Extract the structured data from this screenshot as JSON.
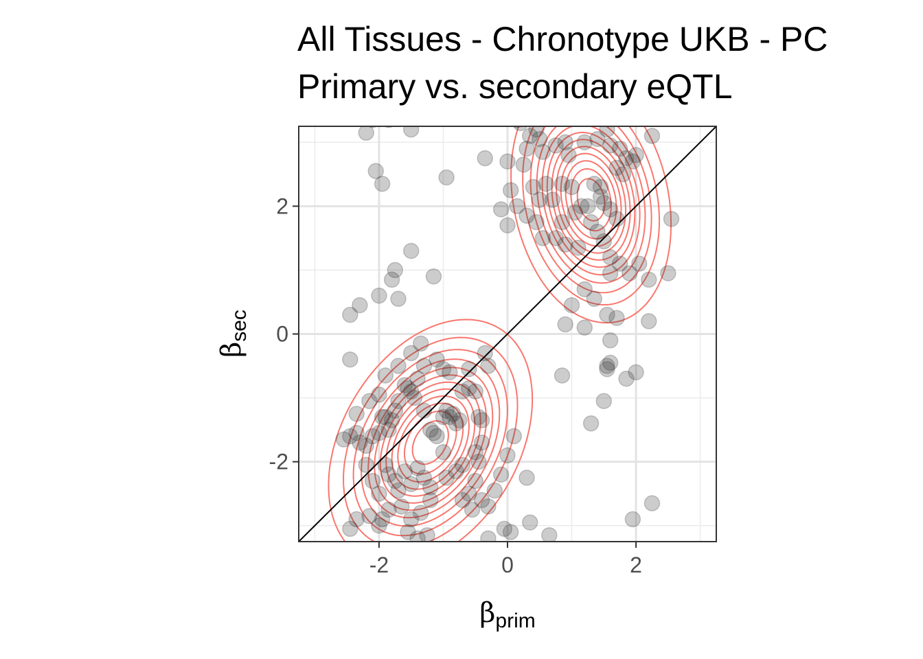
{
  "chart_data": {
    "type": "scatter",
    "title": "All Tissues - Chronotype UKB - PC",
    "subtitle": "Primary vs. secondary eQTL",
    "xlabel": {
      "symbol": "β",
      "subscript": "prim"
    },
    "ylabel": {
      "symbol": "β",
      "subscript": "sec"
    },
    "xlim": [
      -3.25,
      3.25
    ],
    "ylim": [
      -3.25,
      3.25
    ],
    "x_ticks": [
      -2,
      0,
      2
    ],
    "y_ticks": [
      -2,
      0,
      2
    ],
    "x_tick_labels": [
      "-2",
      "0",
      "2"
    ],
    "y_tick_labels": [
      "-2",
      "0",
      "2"
    ],
    "minor_gridlines": [
      -3,
      -1,
      1,
      3
    ],
    "grid": true,
    "reference_line": {
      "type": "identity",
      "slope": 1,
      "intercept": 0,
      "color": "#000000"
    },
    "point_color": "#333333",
    "point_opacity": 0.25,
    "contour_color": "#f8766d",
    "density_contours": {
      "note_free": true,
      "modes": [
        {
          "x": -1.2,
          "y": -1.7,
          "sx": 0.7,
          "sy": 0.85,
          "rho": 0.35,
          "weight": 0.55
        },
        {
          "x": 1.3,
          "y": 2.1,
          "sx": 0.55,
          "sy": 0.85,
          "rho": -0.2,
          "weight": 0.45
        }
      ],
      "levels": 12
    },
    "points": [
      [
        -2.55,
        -1.65
      ],
      [
        -2.45,
        -1.6
      ],
      [
        -2.35,
        -1.55
      ],
      [
        -2.3,
        -1.7
      ],
      [
        -2.2,
        -1.75
      ],
      [
        -2.1,
        -1.6
      ],
      [
        -2.0,
        -1.55
      ],
      [
        -1.95,
        -1.3
      ],
      [
        -1.9,
        -1.3
      ],
      [
        -1.85,
        -1.5
      ],
      [
        -1.8,
        -1.35
      ],
      [
        -1.75,
        -1.2
      ],
      [
        -1.7,
        -1.05
      ],
      [
        -1.6,
        -0.8
      ],
      [
        -1.55,
        -0.85
      ],
      [
        -1.5,
        -0.9
      ],
      [
        -1.45,
        -1.0
      ],
      [
        -1.4,
        -0.7
      ],
      [
        -1.3,
        -1.2
      ],
      [
        -1.2,
        -1.5
      ],
      [
        -1.15,
        -1.55
      ],
      [
        -1.1,
        -1.6
      ],
      [
        -1.0,
        -1.3
      ],
      [
        -0.95,
        -1.2
      ],
      [
        -0.9,
        -1.3
      ],
      [
        -0.85,
        -1.25
      ],
      [
        -0.8,
        -1.4
      ],
      [
        -0.75,
        -1.35
      ],
      [
        -0.7,
        -0.9
      ],
      [
        -0.6,
        -0.85
      ],
      [
        -0.5,
        -0.9
      ],
      [
        -0.45,
        -1.3
      ],
      [
        -0.4,
        -1.35
      ],
      [
        -0.3,
        -0.5
      ],
      [
        -0.35,
        -0.3
      ],
      [
        -0.6,
        -0.55
      ],
      [
        -0.9,
        -0.6
      ],
      [
        -1.0,
        -0.55
      ],
      [
        -1.1,
        -0.4
      ],
      [
        -1.3,
        -0.5
      ],
      [
        -1.35,
        -0.15
      ],
      [
        -1.5,
        -0.3
      ],
      [
        -1.7,
        -0.5
      ],
      [
        -1.9,
        -0.65
      ],
      [
        -2.0,
        -0.95
      ],
      [
        -2.15,
        -1.05
      ],
      [
        -2.35,
        -1.25
      ],
      [
        -2.45,
        -0.4
      ],
      [
        -2.45,
        0.3
      ],
      [
        -2.3,
        0.45
      ],
      [
        -2.0,
        0.6
      ],
      [
        -1.7,
        0.55
      ],
      [
        -1.8,
        0.85
      ],
      [
        -1.75,
        1.0
      ],
      [
        -1.5,
        1.3
      ],
      [
        -1.15,
        0.9
      ],
      [
        -2.2,
        -2.05
      ],
      [
        -2.1,
        -2.3
      ],
      [
        -2.0,
        -2.5
      ],
      [
        -1.9,
        -2.05
      ],
      [
        -1.85,
        -2.2
      ],
      [
        -1.75,
        -2.3
      ],
      [
        -1.7,
        -2.45
      ],
      [
        -1.6,
        -2.15
      ],
      [
        -1.5,
        -2.35
      ],
      [
        -1.4,
        -2.1
      ],
      [
        -1.3,
        -2.25
      ],
      [
        -1.2,
        -2.4
      ],
      [
        -1.0,
        -1.85
      ],
      [
        -0.95,
        -2.25
      ],
      [
        -0.8,
        -2.15
      ],
      [
        -0.7,
        -2.05
      ],
      [
        -0.5,
        -1.85
      ],
      [
        -0.4,
        -1.7
      ],
      [
        -0.45,
        -2.0
      ],
      [
        -0.5,
        -2.3
      ],
      [
        -0.6,
        -2.5
      ],
      [
        -0.7,
        -2.6
      ],
      [
        -0.55,
        -2.75
      ],
      [
        -0.4,
        -2.6
      ],
      [
        -0.3,
        -2.7
      ],
      [
        -0.2,
        -2.45
      ],
      [
        -0.1,
        -2.2
      ],
      [
        0.0,
        -1.9
      ],
      [
        0.1,
        -1.6
      ],
      [
        0.3,
        -2.25
      ],
      [
        -1.2,
        -2.6
      ],
      [
        -1.35,
        -2.8
      ],
      [
        -1.5,
        -2.9
      ],
      [
        -1.65,
        -2.7
      ],
      [
        -1.85,
        -2.75
      ],
      [
        -1.95,
        -2.9
      ],
      [
        -2.0,
        -3.0
      ],
      [
        -2.15,
        -2.85
      ],
      [
        -2.35,
        -2.9
      ],
      [
        -2.45,
        -3.05
      ],
      [
        -1.55,
        -3.1
      ],
      [
        -1.4,
        -3.2
      ],
      [
        -1.25,
        -3.15
      ],
      [
        -0.3,
        -3.2
      ],
      [
        -0.05,
        -3.05
      ],
      [
        0.05,
        -3.1
      ],
      [
        0.35,
        -2.95
      ],
      [
        0.65,
        -3.15
      ],
      [
        -2.2,
        3.15
      ],
      [
        -2.1,
        3.35
      ],
      [
        -1.85,
        3.35
      ],
      [
        -1.5,
        3.2
      ],
      [
        -2.05,
        2.55
      ],
      [
        -1.95,
        2.35
      ],
      [
        -0.95,
        2.45
      ],
      [
        0.2,
        3.3
      ],
      [
        0.35,
        3.1
      ],
      [
        0.45,
        3.2
      ],
      [
        0.5,
        3.05
      ],
      [
        0.3,
        2.9
      ],
      [
        0.55,
        2.85
      ],
      [
        0.75,
        2.95
      ],
      [
        0.9,
        3.0
      ],
      [
        1.2,
        3.0
      ],
      [
        1.4,
        3.05
      ],
      [
        1.55,
        3.2
      ],
      [
        1.6,
        2.95
      ],
      [
        1.75,
        2.9
      ],
      [
        1.85,
        2.75
      ],
      [
        2.0,
        2.8
      ],
      [
        2.25,
        3.1
      ],
      [
        0.05,
        2.25
      ],
      [
        0.15,
        2.0
      ],
      [
        0.3,
        1.85
      ],
      [
        0.45,
        1.75
      ],
      [
        0.5,
        2.1
      ],
      [
        0.6,
        2.35
      ],
      [
        0.7,
        2.1
      ],
      [
        0.85,
        2.35
      ],
      [
        1.0,
        2.3
      ],
      [
        1.15,
        2.0
      ],
      [
        1.35,
        2.35
      ],
      [
        1.45,
        2.15
      ],
      [
        1.5,
        2.05
      ],
      [
        1.6,
        1.95
      ],
      [
        1.7,
        1.8
      ],
      [
        1.8,
        2.5
      ],
      [
        1.95,
        2.7
      ],
      [
        1.45,
        2.3
      ],
      [
        1.25,
        2.0
      ],
      [
        1.05,
        1.9
      ],
      [
        0.85,
        1.75
      ],
      [
        0.75,
        1.5
      ],
      [
        0.9,
        1.4
      ],
      [
        1.1,
        1.35
      ],
      [
        1.3,
        1.75
      ],
      [
        1.4,
        1.6
      ],
      [
        1.5,
        1.45
      ],
      [
        1.6,
        1.2
      ],
      [
        1.75,
        1.1
      ],
      [
        1.9,
        0.95
      ],
      [
        2.05,
        1.1
      ],
      [
        2.2,
        0.85
      ],
      [
        2.5,
        0.95
      ],
      [
        2.55,
        1.8
      ],
      [
        1.6,
        0.95
      ],
      [
        1.35,
        0.55
      ],
      [
        1.2,
        0.7
      ],
      [
        1.0,
        0.45
      ],
      [
        0.9,
        0.15
      ],
      [
        1.2,
        0.1
      ],
      [
        1.55,
        0.3
      ],
      [
        1.7,
        0.25
      ],
      [
        1.6,
        -0.1
      ],
      [
        1.55,
        -0.5
      ],
      [
        1.6,
        -0.45
      ],
      [
        1.85,
        -0.7
      ],
      [
        2.0,
        -0.6
      ],
      [
        1.5,
        -1.05
      ],
      [
        1.3,
        -1.4
      ],
      [
        1.55,
        -0.55
      ],
      [
        2.2,
        0.2
      ],
      [
        -0.35,
        2.75
      ],
      [
        0.0,
        2.7
      ],
      [
        0.25,
        2.65
      ],
      [
        0.55,
        1.5
      ],
      [
        0.0,
        1.7
      ],
      [
        -0.1,
        1.95
      ],
      [
        0.4,
        2.3
      ],
      [
        0.85,
        -0.65
      ],
      [
        1.95,
        -2.9
      ],
      [
        2.25,
        -2.65
      ],
      [
        0.15,
        3.35
      ],
      [
        0.95,
        2.8
      ],
      [
        1.7,
        2.6
      ]
    ]
  }
}
